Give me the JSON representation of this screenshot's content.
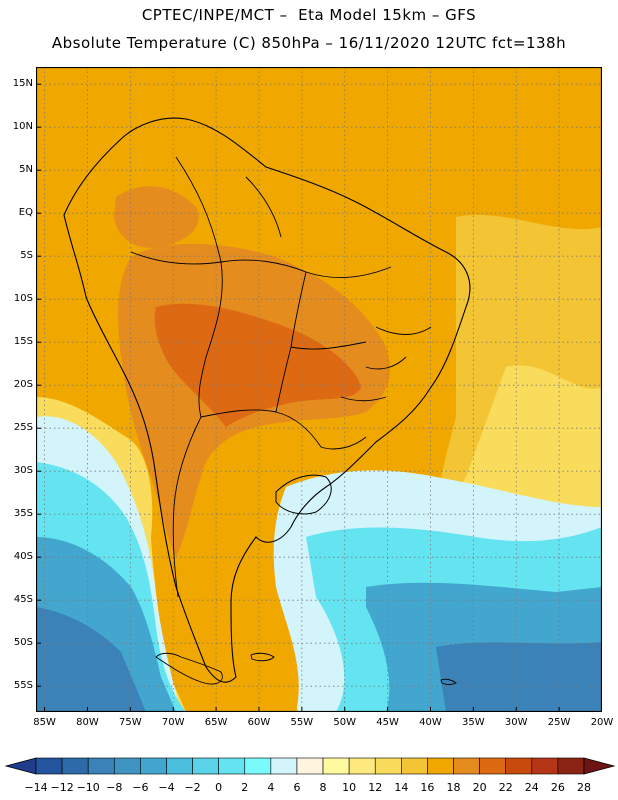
{
  "title_line1": "CPTEC/INPE/MCT –  Eta Model 15km – GFS",
  "title_line2": "Absolute Temperature (C) 850hPa – 16/11/2020 12UTC fct=138h",
  "map": {
    "lat_labels": [
      "15N",
      "10N",
      "5N",
      "EQ",
      "5S",
      "10S",
      "15S",
      "20S",
      "25S",
      "30S",
      "35S",
      "40S",
      "45S",
      "50S",
      "55S"
    ],
    "lon_labels": [
      "85W",
      "80W",
      "75W",
      "70W",
      "65W",
      "60W",
      "55W",
      "50W",
      "45W",
      "40W",
      "35W",
      "30W",
      "25W",
      "20W"
    ],
    "lat_range": [
      -58,
      17
    ],
    "lon_range": [
      -86,
      -20
    ],
    "grid": "dotted"
  },
  "colorbar": {
    "labels": [
      "-14",
      "-12",
      "-10",
      "-8",
      "-6",
      "-4",
      "-2",
      "0",
      "2",
      "4",
      "6",
      "8",
      "10",
      "12",
      "14",
      "16",
      "18",
      "20",
      "22",
      "24",
      "26",
      "28"
    ],
    "colors": [
      "#1f3d8c",
      "#24549e",
      "#2d6aaa",
      "#3a82b8",
      "#4094c2",
      "#42a6cf",
      "#4bbede",
      "#5ad3e8",
      "#64e4f0",
      "#7afafa",
      "#d2f4fa",
      "#fff5de",
      "#fffaa0",
      "#fde97e",
      "#fadc5c",
      "#f3c434",
      "#f0a800",
      "#e58c1e",
      "#dd6a12",
      "#c84a0c",
      "#b53616",
      "#8a2414",
      "#6e1414"
    ]
  },
  "colors": {
    "hot": "#dd6a12",
    "warm": "#e58c1e",
    "mild": "#f0a800",
    "cool": "#fadc5c",
    "cold": "#64e4f0",
    "colder": "#42a6cf",
    "coldest": "#2d6aaa"
  }
}
